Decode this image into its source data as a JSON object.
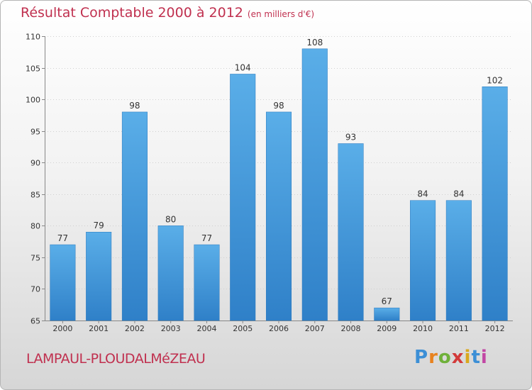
{
  "chart_data": {
    "type": "bar",
    "title": "Résultat Comptable 2000 à 2012",
    "subtitle": "(en milliers d'€)",
    "categories": [
      "2000",
      "2001",
      "2002",
      "2003",
      "2004",
      "2005",
      "2006",
      "2007",
      "2008",
      "2009",
      "2010",
      "2011",
      "2012"
    ],
    "values": [
      77,
      79,
      98,
      80,
      77,
      104,
      98,
      108,
      93,
      67,
      84,
      84,
      102
    ],
    "ylim": [
      65,
      110
    ],
    "yticks": [
      65,
      70,
      75,
      80,
      85,
      90,
      95,
      100,
      105,
      110
    ],
    "grid": true,
    "xlabel": "",
    "ylabel": "",
    "bar_color": "#4a9ee0"
  },
  "footer": {
    "commune": "LAMPAUL-PLOUDALMéZEAU",
    "brand": "Proxiti"
  }
}
